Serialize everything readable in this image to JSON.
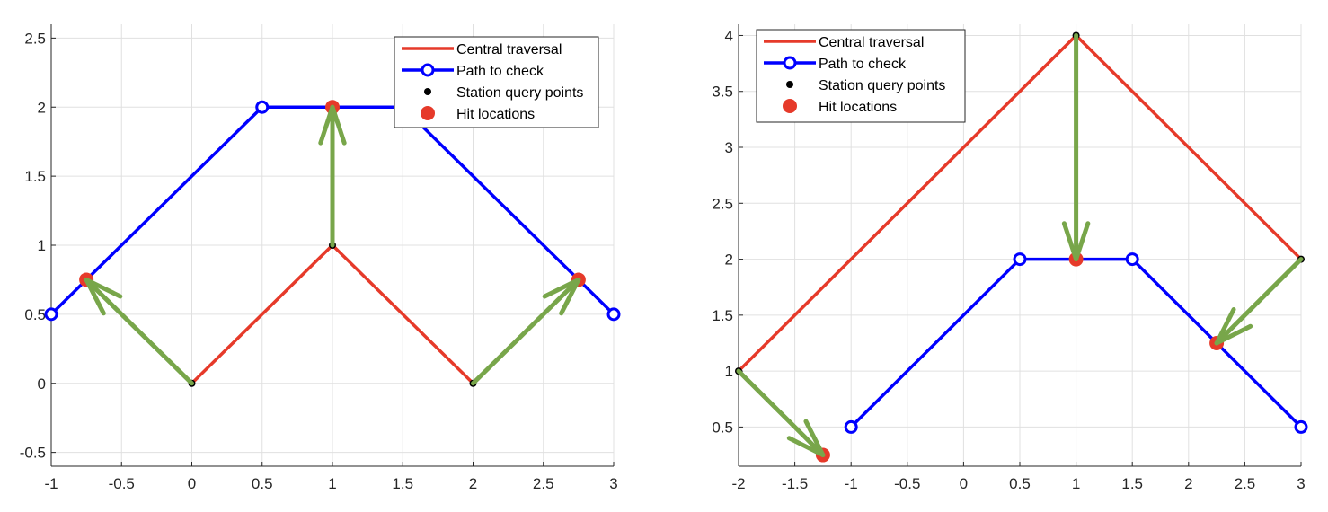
{
  "colors": {
    "central": "#e63a2a",
    "path": "#0000ff",
    "station": "#000000",
    "hit": "#e63a2a",
    "arrow": "#78a64a",
    "grid": "#e0e0e0",
    "axis": "#262626"
  },
  "legend_labels": [
    "Central traversal",
    "Path to check",
    "Station query points",
    "Hit locations"
  ],
  "chart_data": [
    {
      "type": "line",
      "title": "",
      "xlabel": "",
      "ylabel": "",
      "xlim": [
        -1,
        3
      ],
      "ylim": [
        -0.6,
        2.6
      ],
      "x_ticks": [
        "-1",
        "-0.5",
        "0",
        "0.5",
        "1",
        "1.5",
        "2",
        "2.5",
        "3"
      ],
      "y_ticks": [
        "-0.5",
        "0",
        "0.5",
        "1",
        "1.5",
        "2",
        "2.5"
      ],
      "grid": true,
      "legend_position": "top-right",
      "series": [
        {
          "name": "Central traversal",
          "x": [
            0,
            1,
            2
          ],
          "y": [
            0,
            1,
            0
          ]
        },
        {
          "name": "Path to check",
          "x": [
            -1,
            0.5,
            1.5,
            3
          ],
          "y": [
            0.5,
            2,
            2,
            0.5
          ]
        },
        {
          "name": "Station query points",
          "x": [
            0,
            1,
            2
          ],
          "y": [
            0,
            1,
            0
          ]
        },
        {
          "name": "Hit locations",
          "x": [
            -0.75,
            1,
            2.75
          ],
          "y": [
            0.75,
            2,
            0.75
          ]
        }
      ],
      "arrows": [
        {
          "from": [
            0,
            0
          ],
          "to": [
            -0.75,
            0.75
          ]
        },
        {
          "from": [
            1,
            1
          ],
          "to": [
            1,
            2
          ]
        },
        {
          "from": [
            2,
            0
          ],
          "to": [
            2.75,
            0.75
          ]
        }
      ]
    },
    {
      "type": "line",
      "title": "",
      "xlabel": "",
      "ylabel": "",
      "xlim": [
        -2,
        3
      ],
      "ylim": [
        0.15,
        4.1
      ],
      "x_ticks": [
        "-2",
        "-1.5",
        "-1",
        "-0.5",
        "0",
        "0.5",
        "1",
        "1.5",
        "2",
        "2.5",
        "3"
      ],
      "y_ticks": [
        "0.5",
        "1",
        "1.5",
        "2",
        "2.5",
        "3",
        "3.5",
        "4"
      ],
      "grid": true,
      "legend_position": "top-left",
      "series": [
        {
          "name": "Central traversal",
          "x": [
            -2,
            1,
            3
          ],
          "y": [
            1,
            4,
            2
          ]
        },
        {
          "name": "Path to check",
          "x": [
            -1,
            0.5,
            1.5,
            3
          ],
          "y": [
            0.5,
            2,
            2,
            0.5
          ]
        },
        {
          "name": "Station query points",
          "x": [
            -2,
            1,
            3
          ],
          "y": [
            1,
            4,
            2
          ]
        },
        {
          "name": "Hit locations",
          "x": [
            -1.25,
            1,
            2.25
          ],
          "y": [
            0.25,
            2,
            1.25
          ]
        }
      ],
      "arrows": [
        {
          "from": [
            -2,
            1
          ],
          "to": [
            -1.25,
            0.25
          ]
        },
        {
          "from": [
            1,
            4
          ],
          "to": [
            1,
            2
          ]
        },
        {
          "from": [
            3,
            2
          ],
          "to": [
            2.25,
            1.25
          ]
        }
      ]
    }
  ]
}
